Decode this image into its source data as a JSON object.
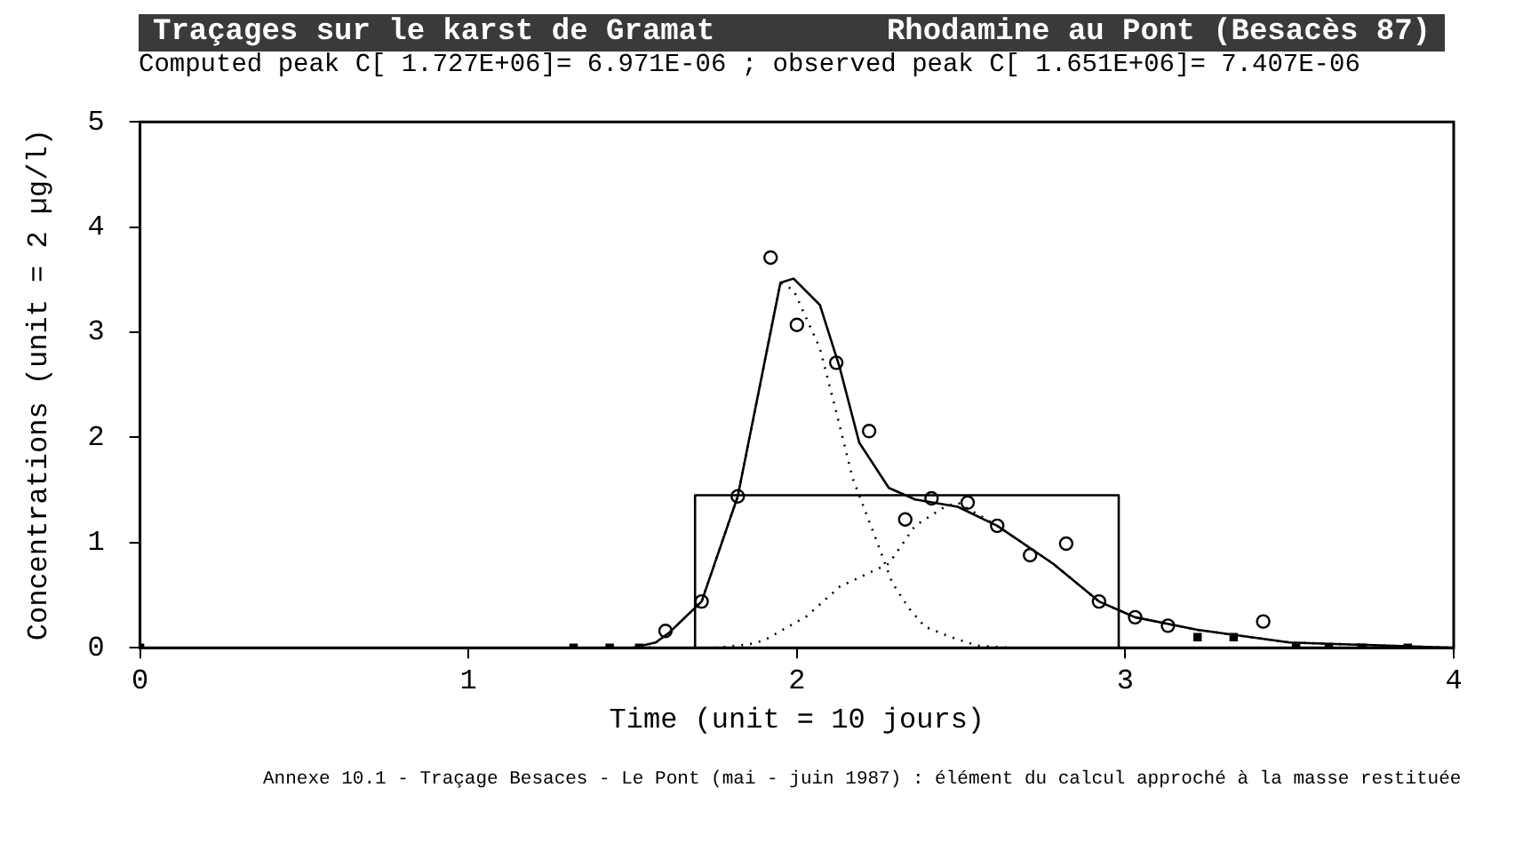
{
  "chart_data": {
    "type": "line",
    "title": "Traçages sur le karst de Gramat",
    "subtitle": "Rhodamine au Pont (Besacès 87)",
    "xlabel": "Time (unit = 10 jours)",
    "ylabel": "Concentrations (unit = 2 µg/l)",
    "annotations": [
      "Computed peak C[ 1.727E+06]= 6.971E-06 ; observed peak C[ 1.651E+06]= 7.407E-06",
      "Annexe 10.1 -  Traçage Besaces - Le Pont (mai - juin 1987) : élément du calcul approché à la masse restituée"
    ],
    "xlim": [
      0,
      4
    ],
    "xticks": [
      0,
      1,
      2,
      3,
      4
    ],
    "ylim": [
      0,
      5
    ],
    "yticks": [
      0,
      1,
      2,
      3,
      4,
      5
    ],
    "legend": false,
    "series": [
      {
        "type": "line",
        "color": "#000000",
        "line_style": "solid",
        "marker": "none",
        "x": [
          1.69,
          1.69,
          2.98,
          2.98
        ],
        "values": [
          0,
          1.45,
          1.45,
          0
        ]
      },
      {
        "type": "line",
        "color": "#000000",
        "line_style": "dotted",
        "marker": "none",
        "x": [
          1.55,
          1.61,
          1.71,
          1.82,
          1.95,
          1.99,
          2.07,
          2.12,
          2.17,
          2.24,
          2.29,
          2.34,
          2.39,
          2.47,
          2.55,
          2.65
        ],
        "values": [
          0,
          0.14,
          0.44,
          1.44,
          3.47,
          3.4,
          2.85,
          2.24,
          1.61,
          1.04,
          0.62,
          0.38,
          0.2,
          0.1,
          0.02,
          0
        ]
      },
      {
        "type": "line",
        "color": "#000000",
        "line_style": "dotted",
        "marker": "none",
        "x": [
          1.75,
          1.85,
          1.9,
          2.03,
          2.13,
          2.28,
          2.36,
          2.45,
          2.49,
          2.61,
          2.78,
          2.92,
          3.03,
          3.22,
          3.5,
          4
        ],
        "values": [
          0,
          0.03,
          0.07,
          0.3,
          0.58,
          0.8,
          1.16,
          1.34,
          1.38,
          1.16,
          0.8,
          0.44,
          0.29,
          0.17,
          0.05,
          0
        ]
      },
      {
        "type": "line",
        "color": "#000000",
        "line_style": "solid",
        "marker": "none",
        "x": [
          0,
          1.5,
          1.57,
          1.61,
          1.71,
          1.82,
          1.95,
          1.99,
          2.07,
          2.13,
          2.19,
          2.28,
          2.36,
          2.49,
          2.61,
          2.78,
          2.92,
          3.03,
          3.22,
          3.5,
          4
        ],
        "values": [
          0,
          0,
          0.05,
          0.14,
          0.44,
          1.44,
          3.47,
          3.51,
          3.26,
          2.67,
          1.95,
          1.52,
          1.41,
          1.34,
          1.16,
          0.8,
          0.44,
          0.29,
          0.17,
          0.05,
          0
        ]
      },
      {
        "type": "scatter",
        "color": "#000000",
        "marker": "circle",
        "x": [
          1.6,
          1.71,
          1.82,
          1.92,
          2.0,
          2.12,
          2.22,
          2.33,
          2.41,
          2.52,
          2.61,
          2.71,
          2.82,
          2.92,
          3.03,
          3.13,
          3.42
        ],
        "values": [
          0.16,
          0.44,
          1.44,
          3.71,
          3.07,
          2.71,
          2.06,
          1.22,
          1.42,
          1.38,
          1.16,
          0.88,
          0.99,
          0.44,
          0.29,
          0.21,
          0.25
        ]
      },
      {
        "type": "scatter",
        "color": "#000000",
        "marker": "square",
        "x": [
          0,
          1.32,
          1.43,
          1.52,
          3.22,
          3.33,
          3.52,
          3.62,
          3.72,
          3.86
        ],
        "values": [
          0,
          0,
          0,
          0,
          0.1,
          0.1,
          0,
          0,
          0,
          0
        ]
      }
    ]
  }
}
